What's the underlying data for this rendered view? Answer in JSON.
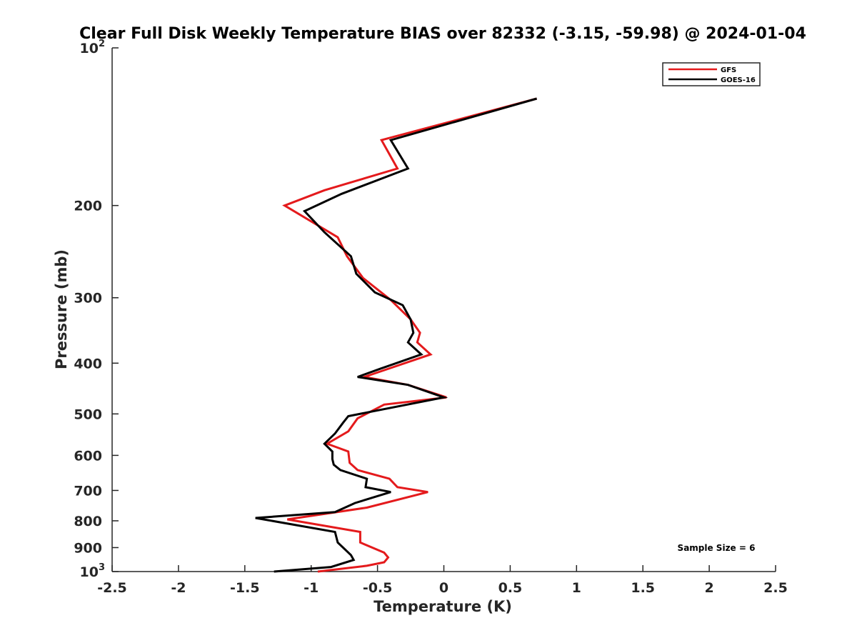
{
  "chart_data": {
    "type": "line",
    "title": "Clear Full Disk Weekly Temperature BIAS over 82332 (-3.15, -59.98) @ 2024-01-04",
    "xlabel": "Temperature (K)",
    "ylabel": "Pressure (mb)",
    "xlim": [
      -2.5,
      2.5
    ],
    "ylim": [
      100,
      1000
    ],
    "y_scale": "log",
    "y_reversed": true,
    "grid": false,
    "x_ticks": [
      -2.5,
      -2,
      -1.5,
      -1,
      -0.5,
      0,
      0.5,
      1,
      1.5,
      2,
      2.5
    ],
    "x_tick_labels": [
      "-2.5",
      "-2",
      "-1.5",
      "-1",
      "-0.5",
      "0",
      "0.5",
      "1",
      "1.5",
      "2",
      "2.5"
    ],
    "y_ticks": [
      {
        "value": 100,
        "base": "10",
        "exp": "2"
      },
      {
        "value": 200,
        "label": "200"
      },
      {
        "value": 300,
        "label": "300"
      },
      {
        "value": 400,
        "label": "400"
      },
      {
        "value": 500,
        "label": "500"
      },
      {
        "value": 600,
        "label": "600"
      },
      {
        "value": 700,
        "label": "700"
      },
      {
        "value": 800,
        "label": "800"
      },
      {
        "value": 900,
        "label": "900"
      },
      {
        "value": 1000,
        "base": "10",
        "exp": "3"
      }
    ],
    "legend": {
      "placement": "top-right"
    },
    "annotation": "Sample Size = 6",
    "series": [
      {
        "name": "GFS",
        "color": "#e41a1c",
        "points": [
          [
            0.7,
            125
          ],
          [
            -0.47,
            150
          ],
          [
            -0.35,
            170
          ],
          [
            -0.9,
            187
          ],
          [
            -1.2,
            200
          ],
          [
            -0.8,
            230
          ],
          [
            -0.73,
            250
          ],
          [
            -0.61,
            275
          ],
          [
            -0.4,
            303
          ],
          [
            -0.25,
            330
          ],
          [
            -0.18,
            350
          ],
          [
            -0.2,
            365
          ],
          [
            -0.1,
            385
          ],
          [
            -0.6,
            425
          ],
          [
            -0.27,
            440
          ],
          [
            0.02,
            465
          ],
          [
            -0.45,
            480
          ],
          [
            -0.65,
            510
          ],
          [
            -0.72,
            540
          ],
          [
            -0.88,
            570
          ],
          [
            -0.72,
            590
          ],
          [
            -0.71,
            620
          ],
          [
            -0.65,
            640
          ],
          [
            -0.41,
            665
          ],
          [
            -0.35,
            690
          ],
          [
            -0.12,
            705
          ],
          [
            -0.58,
            755
          ],
          [
            -1.18,
            795
          ],
          [
            -0.63,
            840
          ],
          [
            -0.63,
            880
          ],
          [
            -0.45,
            920
          ],
          [
            -0.42,
            940
          ],
          [
            -0.45,
            960
          ],
          [
            -0.58,
            975
          ],
          [
            -0.95,
            1000
          ]
        ]
      },
      {
        "name": "GOES-16",
        "color": "#000000",
        "points": [
          [
            0.7,
            125
          ],
          [
            -0.4,
            150
          ],
          [
            -0.27,
            170
          ],
          [
            -0.77,
            190
          ],
          [
            -1.05,
            205
          ],
          [
            -0.9,
            225
          ],
          [
            -0.7,
            250
          ],
          [
            -0.66,
            270
          ],
          [
            -0.52,
            293
          ],
          [
            -0.31,
            310
          ],
          [
            -0.25,
            330
          ],
          [
            -0.23,
            350
          ],
          [
            -0.27,
            365
          ],
          [
            -0.17,
            385
          ],
          [
            -0.48,
            410
          ],
          [
            -0.65,
            425
          ],
          [
            -0.27,
            440
          ],
          [
            0,
            465
          ],
          [
            -0.72,
            505
          ],
          [
            -0.76,
            520
          ],
          [
            -0.82,
            545
          ],
          [
            -0.9,
            570
          ],
          [
            -0.84,
            590
          ],
          [
            -0.84,
            610
          ],
          [
            -0.83,
            625
          ],
          [
            -0.78,
            640
          ],
          [
            -0.58,
            665
          ],
          [
            -0.59,
            690
          ],
          [
            -0.4,
            705
          ],
          [
            -0.67,
            740
          ],
          [
            -0.82,
            770
          ],
          [
            -1.42,
            790
          ],
          [
            -0.82,
            840
          ],
          [
            -0.8,
            880
          ],
          [
            -0.7,
            930
          ],
          [
            -0.68,
            950
          ],
          [
            -0.85,
            980
          ],
          [
            -1.28,
            1000
          ]
        ]
      }
    ]
  }
}
